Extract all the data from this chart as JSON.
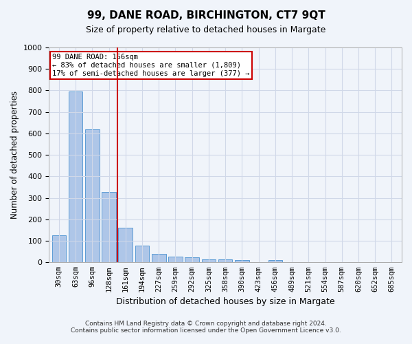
{
  "title": "99, DANE ROAD, BIRCHINGTON, CT7 9QT",
  "subtitle": "Size of property relative to detached houses in Margate",
  "xlabel": "Distribution of detached houses by size in Margate",
  "ylabel": "Number of detached properties",
  "categories": [
    "30sqm",
    "63sqm",
    "96sqm",
    "128sqm",
    "161sqm",
    "194sqm",
    "227sqm",
    "259sqm",
    "292sqm",
    "325sqm",
    "358sqm",
    "390sqm",
    "423sqm",
    "456sqm",
    "489sqm",
    "521sqm",
    "554sqm",
    "587sqm",
    "620sqm",
    "652sqm",
    "685sqm"
  ],
  "values": [
    125,
    795,
    620,
    328,
    160,
    77,
    40,
    27,
    22,
    15,
    15,
    10,
    0,
    10,
    0,
    0,
    0,
    0,
    0,
    0,
    0
  ],
  "bar_color": "#aec6e8",
  "bar_edge_color": "#5b9bd5",
  "highlight_index": 4,
  "red_line_x": 4,
  "ylim": [
    0,
    1000
  ],
  "yticks": [
    0,
    100,
    200,
    300,
    400,
    500,
    600,
    700,
    800,
    900,
    1000
  ],
  "annotation_title": "99 DANE ROAD: 156sqm",
  "annotation_line2": "← 83% of detached houses are smaller (1,809)",
  "annotation_line3": "17% of semi-detached houses are larger (377) →",
  "annotation_box_color": "#ffffff",
  "annotation_box_edge": "#cc0000",
  "grid_color": "#d0d8e8",
  "footer_line1": "Contains HM Land Registry data © Crown copyright and database right 2024.",
  "footer_line2": "Contains public sector information licensed under the Open Government Licence v3.0.",
  "background_color": "#f0f4fa",
  "plot_background": "#f0f4fa",
  "red_line_color": "#cc0000"
}
